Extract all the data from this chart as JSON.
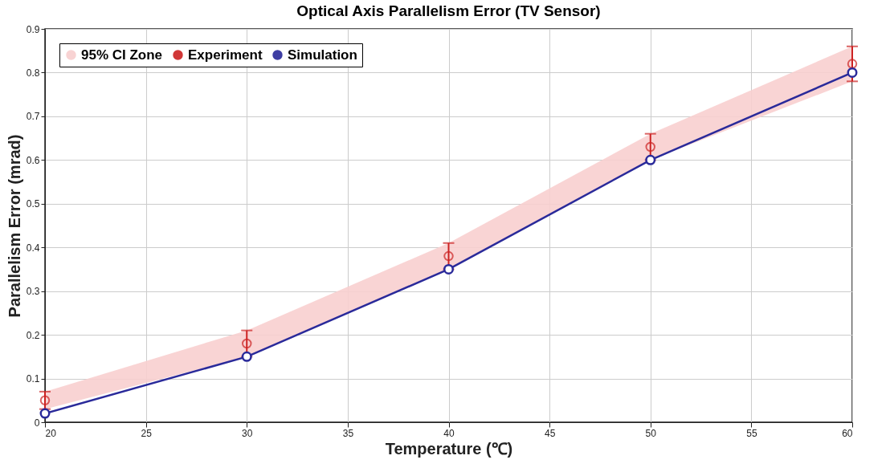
{
  "chart_data": {
    "type": "line",
    "title": "Optical Axis Parallelism Error (TV Sensor)",
    "xlabel": "Temperature (℃)",
    "ylabel": "Parallelism Error (mrad)",
    "x": [
      20,
      30,
      40,
      50,
      60
    ],
    "series": [
      {
        "name": "95% CI Zone",
        "type": "area",
        "color": "#f8cfcf",
        "values": [
          null,
          null,
          null,
          null,
          null
        ],
        "lower": [
          0.03,
          0.15,
          0.35,
          0.6,
          0.78
        ],
        "upper": [
          0.07,
          0.21,
          0.41,
          0.66,
          0.86
        ]
      },
      {
        "name": "Experiment",
        "type": "scatter",
        "color": "#cc2222",
        "values": [
          0.05,
          0.18,
          0.38,
          0.63,
          0.82
        ],
        "errors": [
          0.02,
          0.03,
          0.03,
          0.03,
          0.04
        ]
      },
      {
        "name": "Simulation",
        "type": "line",
        "color": "#2a2a9a",
        "values": [
          0.02,
          0.15,
          0.35,
          0.6,
          0.8
        ]
      }
    ],
    "xlim": [
      20,
      60
    ],
    "xticks": [
      20,
      25,
      30,
      35,
      40,
      45,
      50,
      55,
      60
    ],
    "ylim": [
      0,
      0.9
    ],
    "yticks": [
      0,
      0.1,
      0.2,
      0.3,
      0.4,
      0.5,
      0.6,
      0.7,
      0.8,
      0.9
    ],
    "grid": true,
    "legend": "top left",
    "marker": "circle",
    "line_style": "solid"
  }
}
